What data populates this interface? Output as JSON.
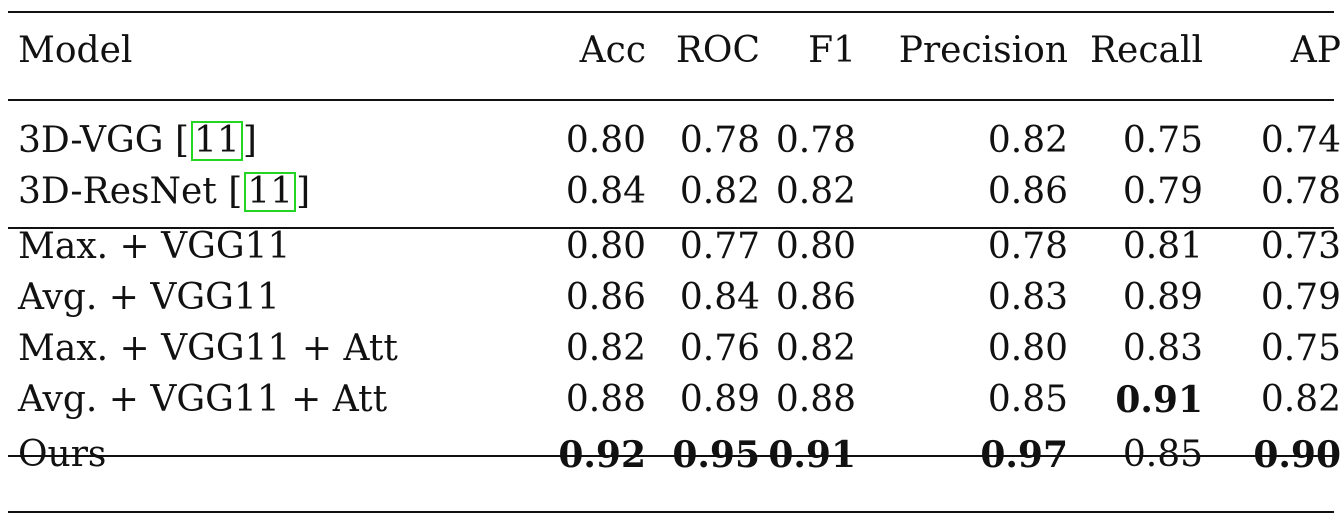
{
  "table": {
    "headers": [
      "Model",
      "Acc",
      "ROC",
      "F1",
      "Precision",
      "Recall",
      "AP"
    ],
    "groups": [
      {
        "rows": [
          {
            "model": "3D-VGG",
            "cite": "11",
            "values": [
              "0.80",
              "0.78",
              "0.78",
              "0.82",
              "0.75",
              "0.74"
            ],
            "bold": []
          },
          {
            "model": "3D-ResNet",
            "cite": "11",
            "values": [
              "0.84",
              "0.82",
              "0.82",
              "0.86",
              "0.79",
              "0.78"
            ],
            "bold": []
          }
        ]
      },
      {
        "rows": [
          {
            "model": "Max. + VGG11",
            "values": [
              "0.80",
              "0.77",
              "0.80",
              "0.78",
              "0.81",
              "0.73"
            ],
            "bold": []
          },
          {
            "model": "Avg. + VGG11",
            "values": [
              "0.86",
              "0.84",
              "0.86",
              "0.83",
              "0.89",
              "0.79"
            ],
            "bold": []
          },
          {
            "model": "Max. + VGG11 + Att",
            "values": [
              "0.82",
              "0.76",
              "0.82",
              "0.80",
              "0.83",
              "0.75"
            ],
            "bold": []
          },
          {
            "model": "Avg. + VGG11 + Att",
            "values": [
              "0.88",
              "0.89",
              "0.88",
              "0.85",
              "0.91",
              "0.82"
            ],
            "bold": [
              4
            ]
          }
        ]
      },
      {
        "rows": [
          {
            "model": "Ours",
            "values": [
              "0.92",
              "0.95",
              "0.91",
              "0.97",
              "0.85",
              "0.90"
            ],
            "bold": [
              0,
              1,
              2,
              3,
              5
            ]
          }
        ]
      }
    ]
  }
}
